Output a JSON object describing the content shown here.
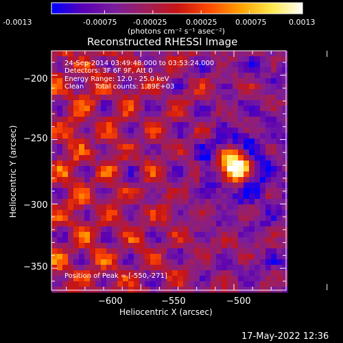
{
  "colorbar": {
    "tick_labels": [
      "-0.0013",
      "-0.00075",
      "-0.00025",
      "0.00025",
      "0.00075",
      "0.0013"
    ],
    "tick_values": [
      -0.0013,
      -0.00075,
      -0.00025,
      0.00025,
      0.00075,
      0.0013
    ],
    "range": [
      -0.0013,
      0.0013
    ],
    "units_label": "(photons cm⁻² s⁻¹ asec⁻²)"
  },
  "chart_data": {
    "type": "heatmap",
    "title": "Reconstructed RHESSI Image",
    "xlabel": "Heliocentric X (arcsec)",
    "ylabel": "Heliocentric Y (arcsec)",
    "xlim": [
      -648,
      -522
    ],
    "ylim": [
      -367,
      -181
    ],
    "x_ticks": [
      -600,
      -550,
      -500
    ],
    "x_tick_labels": [
      "−600",
      "−550",
      "−500"
    ],
    "y_ticks": [
      -200,
      -250,
      -300,
      -350
    ],
    "y_tick_labels": [
      "−200",
      "−250",
      "−300",
      "−350"
    ],
    "grid": false,
    "peak": {
      "x": -550,
      "y": -271
    },
    "annotations": [
      "24-Sep-2014 03:49:48.000 to 03:53:24.000",
      "Detectors: 3F 6F 9F, Att 0",
      "Energy Range: 12.0 - 25.0 keV",
      "Clean     Total counts: 1.89E+03"
    ],
    "peak_label": "Position of Peak = [-550,-271]"
  },
  "footer": {
    "date_stamp": "17-May-2022 12:36"
  },
  "colors": {
    "background": "#000000",
    "foreground": "#ffffff",
    "colormap": [
      "#0000ff",
      "#5a00b4",
      "#7a1e9c",
      "#a01e5a",
      "#c81414",
      "#ff4a00",
      "#ffa000",
      "#ffe84a",
      "#ffffff"
    ]
  }
}
